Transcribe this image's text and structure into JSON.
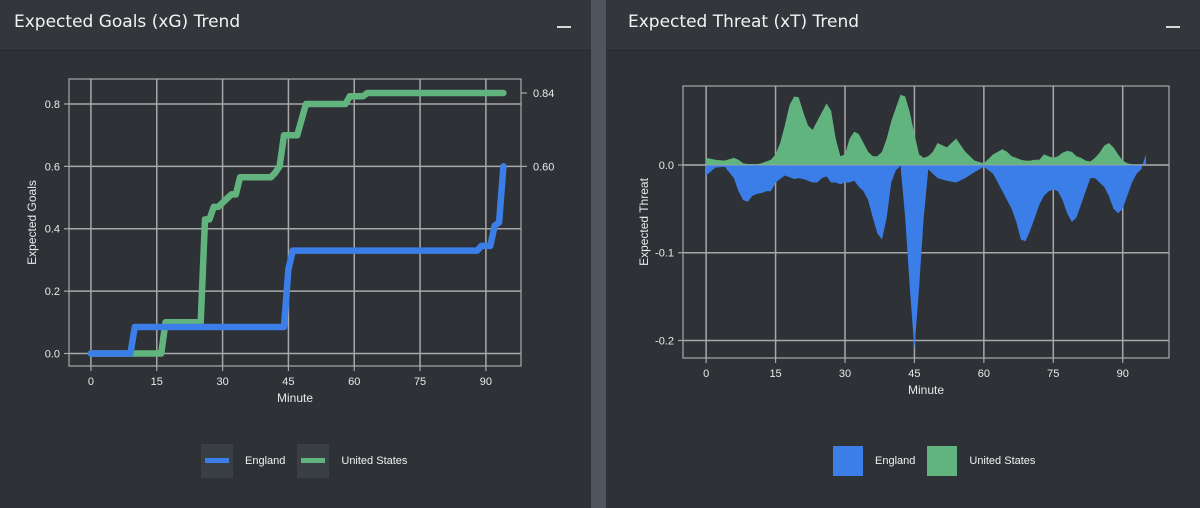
{
  "panels": {
    "xg": {
      "title": "Expected Goals (xG) Trend"
    },
    "xt": {
      "title": "Expected Threat (xT) Trend"
    }
  },
  "colors": {
    "england": "#3b7ee8",
    "united_states": "#62b47f",
    "grid": "#a8a8a8",
    "text": "#e8e8e8"
  },
  "icons": {
    "minimize": "minimize-icon"
  },
  "chart_data": [
    {
      "type": "line",
      "xlabel": "Minute",
      "ylabel": "Expected Goals",
      "xlim": [
        -5,
        98
      ],
      "ylim": [
        -0.04,
        0.88
      ],
      "xticks": [
        0,
        15,
        30,
        45,
        60,
        75,
        90
      ],
      "yticks": [
        0.0,
        0.2,
        0.4,
        0.6,
        0.8
      ],
      "ytick_labels": [
        "0.0",
        "0.2",
        "0.4",
        "0.6",
        "0.8"
      ],
      "right_axis_labels": [
        "0.84",
        "0.60"
      ],
      "grid": true,
      "legend_position": "bottom",
      "series": [
        {
          "name": "England",
          "x": [
            0,
            9,
            10,
            44,
            45,
            46,
            88,
            89,
            91,
            92,
            93,
            94
          ],
          "y": [
            0,
            0,
            0.085,
            0.085,
            0.27,
            0.33,
            0.33,
            0.345,
            0.345,
            0.41,
            0.42,
            0.6
          ]
        },
        {
          "name": "United States",
          "x": [
            0,
            16,
            17,
            25,
            26,
            27,
            28,
            29,
            32,
            33,
            34,
            35,
            41,
            42,
            43,
            44,
            47,
            48,
            49,
            50,
            58,
            59,
            60,
            62,
            63,
            94
          ],
          "y": [
            0,
            0,
            0.1,
            0.1,
            0.43,
            0.43,
            0.47,
            0.47,
            0.51,
            0.51,
            0.565,
            0.565,
            0.565,
            0.58,
            0.6,
            0.7,
            0.7,
            0.75,
            0.8,
            0.8,
            0.8,
            0.825,
            0.825,
            0.825,
            0.835,
            0.835
          ]
        }
      ]
    },
    {
      "type": "area",
      "xlabel": "Minute",
      "ylabel": "Expected Threat",
      "xlim": [
        -5,
        100
      ],
      "ylim": [
        -0.22,
        0.09
      ],
      "xticks": [
        0,
        15,
        30,
        45,
        60,
        75,
        90
      ],
      "yticks": [
        0.0,
        -0.1,
        -0.2
      ],
      "ytick_labels": [
        "0.0",
        "-0.1",
        "-0.2"
      ],
      "grid": true,
      "legend_position": "bottom",
      "series": [
        {
          "name": "England",
          "x": [
            0,
            2,
            4,
            6,
            7,
            8,
            9,
            10,
            11,
            12,
            13,
            14,
            15,
            16,
            17,
            18,
            19,
            20,
            21,
            22,
            23,
            24,
            25,
            26,
            27,
            28,
            29,
            30,
            31,
            32,
            33,
            34,
            35,
            36,
            37,
            38,
            39,
            40,
            41,
            42,
            43,
            44,
            45,
            46,
            47,
            48,
            49,
            50,
            52,
            54,
            56,
            58,
            60,
            62,
            64,
            65,
            66,
            67,
            68,
            69,
            70,
            71,
            72,
            73,
            74,
            75,
            76,
            77,
            78,
            79,
            80,
            81,
            82,
            83,
            84,
            85,
            86,
            87,
            88,
            89,
            90,
            91,
            92,
            93,
            94,
            95
          ],
          "y": [
            -0.012,
            -0.003,
            -0.002,
            -0.015,
            -0.03,
            -0.04,
            -0.042,
            -0.035,
            -0.033,
            -0.032,
            -0.03,
            -0.03,
            -0.02,
            -0.016,
            -0.012,
            -0.014,
            -0.016,
            -0.015,
            -0.016,
            -0.018,
            -0.02,
            -0.02,
            -0.015,
            -0.013,
            -0.02,
            -0.02,
            -0.022,
            -0.02,
            -0.02,
            -0.018,
            -0.025,
            -0.03,
            -0.04,
            -0.06,
            -0.078,
            -0.085,
            -0.06,
            -0.02,
            -0.006,
            -0.001,
            -0.06,
            -0.14,
            -0.21,
            -0.14,
            -0.06,
            -0.005,
            -0.01,
            -0.015,
            -0.018,
            -0.02,
            -0.015,
            -0.008,
            -0.002,
            -0.01,
            -0.03,
            -0.04,
            -0.05,
            -0.065,
            -0.085,
            -0.087,
            -0.075,
            -0.06,
            -0.045,
            -0.035,
            -0.03,
            -0.028,
            -0.03,
            -0.04,
            -0.055,
            -0.065,
            -0.06,
            -0.045,
            -0.03,
            -0.015,
            -0.015,
            -0.02,
            -0.025,
            -0.035,
            -0.05,
            -0.055,
            -0.05,
            -0.035,
            -0.02,
            -0.01,
            -0.005,
            0.012
          ]
        },
        {
          "name": "United States",
          "x": [
            0,
            2,
            4,
            6,
            7,
            8,
            9,
            10,
            11,
            12,
            13,
            14,
            15,
            16,
            17,
            18,
            19,
            20,
            21,
            22,
            23,
            24,
            25,
            26,
            27,
            28,
            29,
            30,
            31,
            32,
            33,
            34,
            35,
            36,
            37,
            38,
            39,
            40,
            41,
            42,
            43,
            44,
            45,
            46,
            47,
            48,
            49,
            50,
            52,
            54,
            56,
            58,
            60,
            62,
            64,
            65,
            66,
            67,
            68,
            69,
            70,
            71,
            72,
            73,
            74,
            75,
            76,
            77,
            78,
            79,
            80,
            81,
            82,
            83,
            84,
            85,
            86,
            87,
            88,
            89,
            90,
            91,
            92,
            93,
            94,
            95
          ],
          "y": [
            0.008,
            0.006,
            0.005,
            0.008,
            0.006,
            0.002,
            0.001,
            0.001,
            0.001,
            0.002,
            0.004,
            0.006,
            0.012,
            0.025,
            0.045,
            0.068,
            0.078,
            0.077,
            0.06,
            0.045,
            0.04,
            0.05,
            0.06,
            0.07,
            0.062,
            0.03,
            0.01,
            0.012,
            0.03,
            0.038,
            0.035,
            0.025,
            0.015,
            0.01,
            0.01,
            0.015,
            0.03,
            0.05,
            0.065,
            0.08,
            0.078,
            0.06,
            0.035,
            0.012,
            0.008,
            0.01,
            0.015,
            0.025,
            0.02,
            0.03,
            0.015,
            0.005,
            0.002,
            0.012,
            0.018,
            0.015,
            0.01,
            0.008,
            0.006,
            0.005,
            0.005,
            0.006,
            0.006,
            0.012,
            0.01,
            0.008,
            0.01,
            0.014,
            0.016,
            0.015,
            0.01,
            0.008,
            0.005,
            0.004,
            0.008,
            0.014,
            0.022,
            0.025,
            0.02,
            0.012,
            0.005,
            0.002,
            0.001,
            0.0,
            0.0,
            0.0
          ]
        }
      ]
    }
  ]
}
